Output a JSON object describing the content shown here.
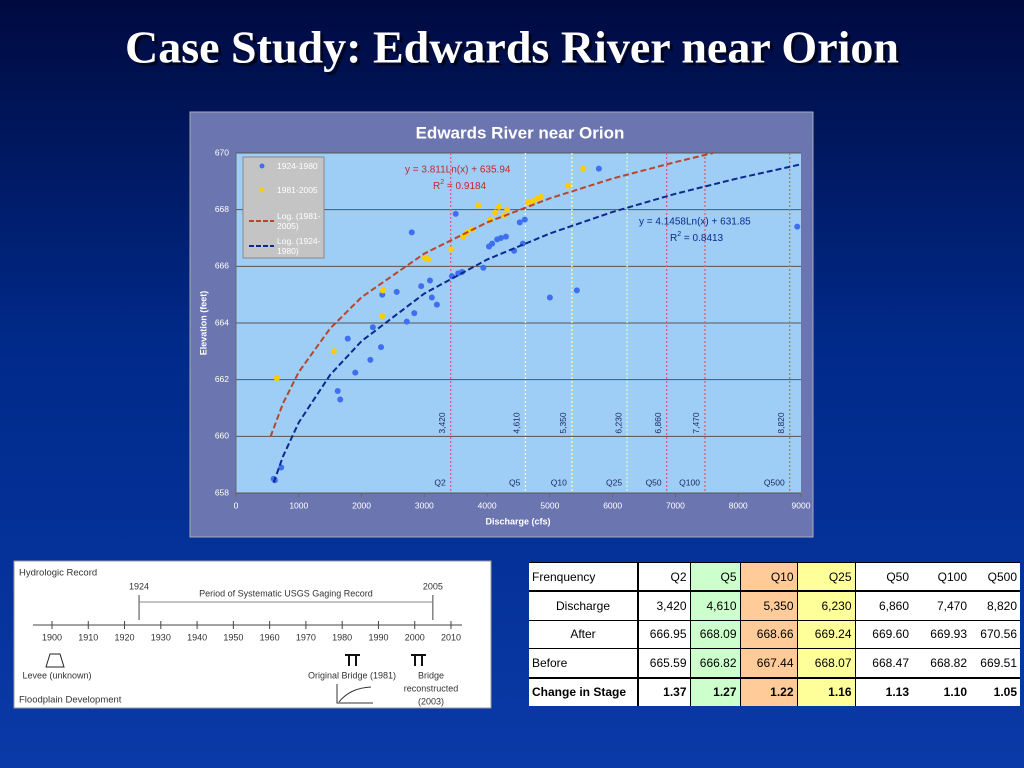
{
  "title": "Case Study: Edwards River near Orion",
  "chart_data": {
    "type": "scatter",
    "title": "Edwards River near Orion",
    "xlabel": "Discharge (cfs)",
    "ylabel": "Elevation (feet)",
    "xlim": [
      0,
      9000
    ],
    "xticks": [
      0,
      1000,
      2000,
      3000,
      4000,
      5000,
      6000,
      7000,
      8000,
      9000
    ],
    "ylim": [
      658,
      670
    ],
    "yticks": [
      658,
      660,
      662,
      664,
      666,
      668,
      670
    ],
    "grid": true,
    "legend": "upper left",
    "series": [
      {
        "name": "1924-1980",
        "style": "markers",
        "color": "#3d6ff0",
        "x": [
          600,
          620,
          720,
          1620,
          1660,
          1780,
          1900,
          2140,
          2180,
          2310,
          2330,
          2560,
          2720,
          2800,
          2840,
          2950,
          3090,
          3120,
          3200,
          3440,
          3500,
          3540,
          3600,
          3940,
          4030,
          4080,
          4160,
          4220,
          4300,
          4430,
          4520,
          4570,
          4600,
          5000,
          5430,
          5780,
          8940
        ],
        "values": [
          658.5,
          658.45,
          658.9,
          661.6,
          661.3,
          663.45,
          662.25,
          662.7,
          663.85,
          663.15,
          665.0,
          665.1,
          664.05,
          667.2,
          664.35,
          665.3,
          665.5,
          664.9,
          664.65,
          665.65,
          667.85,
          665.75,
          665.8,
          665.95,
          666.7,
          666.8,
          666.95,
          667.0,
          667.05,
          666.55,
          667.55,
          666.8,
          667.65,
          664.9,
          665.15,
          669.45,
          667.4
        ]
      },
      {
        "name": "1981-2005",
        "style": "markers",
        "color": "#ffcc00",
        "x": [
          650,
          1560,
          2340,
          2330,
          3010,
          3060,
          3430,
          3620,
          3680,
          3760,
          3860,
          4050,
          4130,
          4190,
          4270,
          4320,
          4650,
          4730,
          4800,
          4860,
          5290,
          5530
        ],
        "values": [
          662.05,
          663.0,
          665.15,
          664.25,
          666.3,
          666.25,
          666.6,
          667.05,
          667.2,
          667.3,
          668.15,
          667.65,
          667.9,
          668.1,
          667.8,
          668.0,
          668.25,
          668.3,
          668.4,
          668.45,
          668.85,
          669.45
        ]
      },
      {
        "name": "Log. (1981-2005)",
        "style": "dashed-line",
        "color": "#b8462a",
        "x": [
          550,
          750,
          1000,
          1500,
          2000,
          3000,
          4000,
          5000,
          6000,
          7000,
          7600
        ],
        "values": [
          659.99,
          661.17,
          662.27,
          663.81,
          664.91,
          666.45,
          667.55,
          668.4,
          669.1,
          669.68,
          670.0
        ]
      },
      {
        "name": "Log. (1924-1980)",
        "style": "dashed-line",
        "color": "#0b2a8e",
        "x": [
          600,
          750,
          1000,
          1500,
          2000,
          3000,
          4000,
          5000,
          6000,
          7000,
          8000,
          9000
        ],
        "values": [
          658.37,
          659.3,
          660.49,
          662.17,
          663.36,
          665.04,
          666.24,
          667.16,
          667.92,
          668.56,
          669.11,
          669.6
        ]
      }
    ],
    "annotations": [
      {
        "text": "y = 3.811Ln(x) + 635.94",
        "r_base": "R",
        "r_sup": "2",
        "r_rest": " = 0.9184",
        "color": "#c0282a"
      },
      {
        "text": "y = 4.1458Ln(x) + 631.85",
        "r_base": "R",
        "r_sup": "2",
        "r_rest": " = 0.8413",
        "color": "#0b2a8e"
      }
    ],
    "reference_lines": [
      {
        "label": "Q2",
        "value": 3420,
        "value_label": "3,420",
        "color": "#d9607a"
      },
      {
        "label": "Q5",
        "value": 4610,
        "value_label": "4,610",
        "color": "#eaffea"
      },
      {
        "label": "Q10",
        "value": 5350,
        "value_label": "5,350",
        "color": "#ffff99"
      },
      {
        "label": "Q25",
        "value": 6230,
        "value_label": "6,230",
        "color": "#ccffcc"
      },
      {
        "label": "Q50",
        "value": 6860,
        "value_label": "6,860",
        "color": "#d9607a"
      },
      {
        "label": "Q100",
        "value": 7470,
        "value_label": "7,470",
        "color": "#d9607a"
      },
      {
        "label": "Q500",
        "value": 8820,
        "value_label": "8,820",
        "color": "#d9607a"
      }
    ]
  },
  "timeline": {
    "title": "Hydrologic Record",
    "years": [
      1900,
      1910,
      1920,
      1930,
      1940,
      1950,
      1960,
      1970,
      1980,
      1990,
      2000,
      2010
    ],
    "period_start": 1924,
    "period_end": 2005,
    "period_label": "Period of Systematic USGS Gaging Record",
    "levee": "Levee (unknown)",
    "original_bridge": "Original Bridge (1981)",
    "reconstructed_bridge": [
      "Bridge",
      "reconstructed",
      "(2003)"
    ],
    "footer": "Floodplain Development"
  },
  "table": {
    "header": [
      "Frenquency",
      "Q2",
      "Q5",
      "Q10",
      "Q25",
      "Q50",
      "Q100",
      "Q500"
    ],
    "rows": [
      [
        "Discharge",
        "3,420",
        "4,610",
        "5,350",
        "6,230",
        "6,860",
        "7,470",
        "8,820"
      ],
      [
        "After",
        "666.95",
        "668.09",
        "668.66",
        "669.24",
        "669.60",
        "669.93",
        "670.56"
      ],
      [
        "Before",
        "665.59",
        "666.82",
        "667.44",
        "668.07",
        "668.47",
        "668.82",
        "669.51"
      ],
      [
        "Change in Stage",
        "1.37",
        "1.27",
        "1.22",
        "1.16",
        "1.13",
        "1.10",
        "1.05"
      ]
    ]
  }
}
